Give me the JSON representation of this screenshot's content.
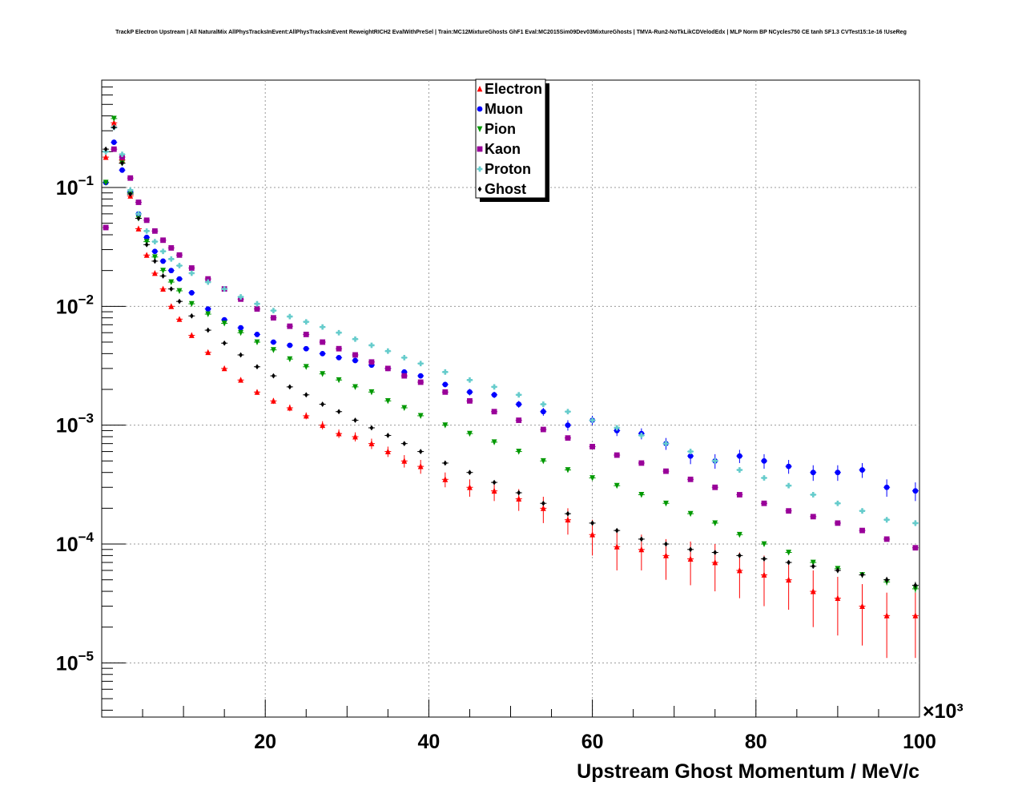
{
  "chart_data": {
    "type": "scatter",
    "title": "TrackP Electron Upstream | All NaturalMix AllPhysTracksInEvent:AllPhysTracksInEvent ReweightRICH2 EvalWithPreSel | Train:MC12MixtureGhosts GhF1 Eval:MC2015Sim09Dev03MixtureGhosts | TMVA-Run2-NoTkLikCDVelodEdx | MLP Norm BP NCycles750 CE tanh SF1.3 CVTest15:1e-16 !UseReg",
    "xlabel": "Upstream Ghost Momentum / MeV/c",
    "x_multiplier": "×10³",
    "xlim": [
      0,
      100
    ],
    "ylim": [
      3.5e-06,
      0.8
    ],
    "yscale": "log",
    "grid": true,
    "legend_position": "top-center",
    "x_ticks": [
      {
        "value": 20,
        "label": "20"
      },
      {
        "value": 40,
        "label": "40"
      },
      {
        "value": 60,
        "label": "60"
      },
      {
        "value": 80,
        "label": "80"
      },
      {
        "value": 100,
        "label": "100"
      }
    ],
    "y_ticks": [
      {
        "value": 0.1,
        "base": "10",
        "exp": "−1"
      },
      {
        "value": 0.01,
        "base": "10",
        "exp": "−2"
      },
      {
        "value": 0.001,
        "base": "10",
        "exp": "−3"
      },
      {
        "value": 0.0001,
        "base": "10",
        "exp": "−4"
      },
      {
        "value": 1e-05,
        "base": "10",
        "exp": "−5"
      }
    ],
    "series": [
      {
        "name": "Electron",
        "color": "#ff0000",
        "marker": "triangle-up",
        "x": [
          0.5,
          1.5,
          2.5,
          3.5,
          4.5,
          5.5,
          6.5,
          7.5,
          8.5,
          9.5,
          11,
          13,
          15,
          17,
          19,
          21,
          23,
          25,
          27,
          29,
          31,
          33,
          35,
          37,
          39,
          42,
          45,
          48,
          51,
          54,
          57,
          60,
          63,
          66,
          69,
          72,
          75,
          78,
          81,
          84,
          87,
          90,
          93,
          96,
          99.5
        ],
        "values": [
          0.18,
          0.35,
          0.17,
          0.085,
          0.045,
          0.027,
          0.019,
          0.014,
          0.01,
          0.0078,
          0.0057,
          0.0041,
          0.003,
          0.0024,
          0.0019,
          0.0016,
          0.0014,
          0.0012,
          0.001,
          0.00085,
          0.0008,
          0.0007,
          0.0006,
          0.0005,
          0.00045,
          0.00035,
          0.0003,
          0.00028,
          0.00024,
          0.0002,
          0.00016,
          0.00012,
          9.5e-05,
          9e-05,
          8e-05,
          7.5e-05,
          7e-05,
          6e-05,
          5.5e-05,
          5e-05,
          4e-05,
          3.5e-05,
          3e-05,
          2.5e-05,
          2.5e-05
        ],
        "err": [
          0.005,
          0.008,
          0.005,
          0.003,
          0.0015,
          0.001,
          0.0007,
          0.0005,
          0.0004,
          0.0003,
          0.0002,
          0.00015,
          0.00012,
          0.0001,
          0.0001,
          9e-05,
          9e-05,
          8e-05,
          8e-05,
          7e-05,
          7e-05,
          7e-05,
          6e-05,
          6e-05,
          6e-05,
          5e-05,
          5e-05,
          5e-05,
          5e-05,
          5e-05,
          4e-05,
          4e-05,
          3.5e-05,
          3e-05,
          3e-05,
          3e-05,
          3e-05,
          2.5e-05,
          2.5e-05,
          2.2e-05,
          2e-05,
          1.8e-05,
          1.6e-05,
          1.4e-05,
          1.4e-05
        ]
      },
      {
        "name": "Muon",
        "color": "#0000ff",
        "marker": "circle",
        "x": [
          0.5,
          1.5,
          2.5,
          3.5,
          4.5,
          5.5,
          6.5,
          7.5,
          8.5,
          9.5,
          11,
          13,
          15,
          17,
          19,
          21,
          23,
          25,
          27,
          29,
          31,
          33,
          35,
          37,
          39,
          42,
          45,
          48,
          51,
          54,
          57,
          60,
          63,
          66,
          69,
          72,
          75,
          78,
          81,
          84,
          87,
          90,
          93,
          96,
          99.5
        ],
        "values": [
          0.11,
          0.24,
          0.14,
          0.092,
          0.06,
          0.038,
          0.029,
          0.024,
          0.02,
          0.017,
          0.013,
          0.0095,
          0.0077,
          0.0066,
          0.0058,
          0.005,
          0.0047,
          0.0044,
          0.004,
          0.0037,
          0.0035,
          0.0032,
          0.003,
          0.0028,
          0.0026,
          0.0022,
          0.0019,
          0.0018,
          0.0015,
          0.0013,
          0.001,
          0.0011,
          0.0009,
          0.00085,
          0.0007,
          0.00055,
          0.0005,
          0.00055,
          0.0005,
          0.00045,
          0.0004,
          0.0004,
          0.00042,
          0.0003,
          0.00028
        ],
        "err": [
          0.004,
          0.006,
          0.004,
          0.003,
          0.002,
          0.0012,
          0.0009,
          0.0007,
          0.0006,
          0.0005,
          0.0004,
          0.0003,
          0.00025,
          0.0002,
          0.0002,
          0.00018,
          0.00017,
          0.00016,
          0.00015,
          0.00015,
          0.00015,
          0.00014,
          0.00014,
          0.00013,
          0.00013,
          0.00012,
          0.00012,
          0.00011,
          0.0001,
          0.0001,
          0.0001,
          0.0001,
          9e-05,
          9e-05,
          8e-05,
          8e-05,
          7e-05,
          7e-05,
          7e-05,
          6e-05,
          6e-05,
          6e-05,
          6e-05,
          5e-05,
          5e-05
        ]
      },
      {
        "name": "Pion",
        "color": "#009900",
        "marker": "triangle-down",
        "x": [
          0.5,
          1.5,
          2.5,
          3.5,
          4.5,
          5.5,
          6.5,
          7.5,
          8.5,
          9.5,
          11,
          13,
          15,
          17,
          19,
          21,
          23,
          25,
          27,
          29,
          31,
          33,
          35,
          37,
          39,
          42,
          45,
          48,
          51,
          54,
          57,
          60,
          63,
          66,
          69,
          72,
          75,
          78,
          81,
          84,
          87,
          90,
          93,
          96,
          99.5
        ],
        "values": [
          0.11,
          0.38,
          0.16,
          0.09,
          0.055,
          0.035,
          0.026,
          0.02,
          0.016,
          0.0135,
          0.0105,
          0.0086,
          0.0072,
          0.006,
          0.005,
          0.0043,
          0.0036,
          0.0031,
          0.0027,
          0.0024,
          0.0021,
          0.0019,
          0.0016,
          0.0014,
          0.0012,
          0.001,
          0.00085,
          0.00072,
          0.0006,
          0.0005,
          0.00042,
          0.00036,
          0.00031,
          0.00026,
          0.00022,
          0.00018,
          0.00015,
          0.00012,
          0.0001,
          8.5e-05,
          7e-05,
          6.2e-05,
          5.5e-05,
          4.8e-05,
          4.2e-05
        ],
        "err": [
          0.003,
          0.008,
          0.004,
          0.002,
          0.0012,
          0.0007,
          0.0005,
          0.0004,
          0.0003,
          0.00025,
          0.0002,
          0.00015,
          0.00012,
          0.0001,
          8e-05,
          6e-05,
          5e-05,
          4e-05,
          3e-05,
          3e-05,
          2.5e-05,
          2e-05,
          2e-05,
          1.5e-05,
          1.5e-05,
          1.2e-05,
          1e-05,
          1e-05,
          8e-06,
          7e-06,
          6e-06,
          5e-06,
          5e-06,
          4e-06,
          4e-06,
          3e-06,
          3e-06,
          3e-06,
          3e-06,
          3e-06,
          3e-06,
          3e-06,
          3e-06,
          3e-06,
          3e-06
        ]
      },
      {
        "name": "Kaon",
        "color": "#990099",
        "marker": "square",
        "x": [
          0.5,
          1.5,
          2.5,
          3.5,
          4.5,
          5.5,
          6.5,
          7.5,
          8.5,
          9.5,
          11,
          13,
          15,
          17,
          19,
          21,
          23,
          25,
          27,
          29,
          31,
          33,
          35,
          37,
          39,
          42,
          45,
          48,
          51,
          54,
          57,
          60,
          63,
          66,
          69,
          72,
          75,
          78,
          81,
          84,
          87,
          90,
          93,
          96,
          99.5
        ],
        "values": [
          0.046,
          0.21,
          0.18,
          0.12,
          0.075,
          0.053,
          0.043,
          0.036,
          0.031,
          0.027,
          0.021,
          0.017,
          0.014,
          0.0115,
          0.0095,
          0.008,
          0.0068,
          0.0058,
          0.005,
          0.0044,
          0.0039,
          0.0034,
          0.003,
          0.0026,
          0.0023,
          0.0019,
          0.0016,
          0.0013,
          0.0011,
          0.00092,
          0.00078,
          0.00066,
          0.00056,
          0.00048,
          0.00041,
          0.00035,
          0.0003,
          0.00026,
          0.00022,
          0.00019,
          0.00017,
          0.00015,
          0.00013,
          0.00011,
          9.3e-05
        ],
        "err": [
          0.0015,
          0.005,
          0.004,
          0.003,
          0.002,
          0.0012,
          0.001,
          0.0008,
          0.0007,
          0.0006,
          0.0004,
          0.0003,
          0.00025,
          0.0002,
          0.00016,
          0.00013,
          0.00011,
          0.0001,
          8e-05,
          7e-05,
          6e-05,
          5e-05,
          5e-05,
          4e-05,
          4e-05,
          3e-05,
          3e-05,
          2e-05,
          2e-05,
          1.8e-05,
          1.6e-05,
          1.4e-05,
          1.2e-05,
          1e-05,
          1e-05,
          9e-06,
          8e-06,
          7e-06,
          6e-06,
          6e-06,
          5e-06,
          5e-06,
          5e-06,
          4e-06,
          4e-06
        ]
      },
      {
        "name": "Proton",
        "color": "#66cccc",
        "marker": "cross",
        "x": [
          0.5,
          1.5,
          2.5,
          3.5,
          4.5,
          5.5,
          6.5,
          7.5,
          8.5,
          9.5,
          11,
          13,
          15,
          17,
          19,
          21,
          23,
          25,
          27,
          29,
          31,
          33,
          35,
          37,
          39,
          42,
          45,
          48,
          51,
          54,
          57,
          60,
          63,
          66,
          69,
          72,
          75,
          78,
          81,
          84,
          87,
          90,
          93,
          96,
          99.5
        ],
        "values": [
          0.2,
          0.32,
          0.19,
          0.095,
          0.06,
          0.043,
          0.035,
          0.029,
          0.025,
          0.022,
          0.019,
          0.016,
          0.014,
          0.012,
          0.0105,
          0.0092,
          0.0082,
          0.0074,
          0.0067,
          0.006,
          0.0053,
          0.0047,
          0.0042,
          0.0037,
          0.0033,
          0.0028,
          0.0024,
          0.0021,
          0.0018,
          0.0015,
          0.0013,
          0.0011,
          0.00095,
          0.00082,
          0.0007,
          0.0006,
          0.0005,
          0.00042,
          0.00036,
          0.00031,
          0.00026,
          0.00022,
          0.00019,
          0.00016,
          0.00015
        ],
        "err": [
          0.004,
          0.006,
          0.004,
          0.002,
          0.0015,
          0.001,
          0.0008,
          0.0006,
          0.0005,
          0.0004,
          0.0003,
          0.00025,
          0.0002,
          0.00018,
          0.00015,
          0.00013,
          0.00012,
          0.0001,
          9e-05,
          8e-05,
          7e-05,
          7e-05,
          6e-05,
          5e-05,
          5e-05,
          4e-05,
          4e-05,
          3e-05,
          3e-05,
          3e-05,
          2.5e-05,
          2.2e-05,
          2e-05,
          1.8e-05,
          1.6e-05,
          1.5e-05,
          1.4e-05,
          1.3e-05,
          1.2e-05,
          1.1e-05,
          1e-05,
          1e-05,
          1e-05,
          9e-06,
          9e-06
        ]
      },
      {
        "name": "Ghost",
        "color": "#000000",
        "marker": "diamond",
        "x": [
          0.5,
          1.5,
          2.5,
          3.5,
          4.5,
          5.5,
          6.5,
          7.5,
          8.5,
          9.5,
          11,
          13,
          15,
          17,
          19,
          21,
          23,
          25,
          27,
          29,
          31,
          33,
          35,
          37,
          39,
          42,
          45,
          48,
          51,
          54,
          57,
          60,
          63,
          66,
          69,
          72,
          75,
          78,
          81,
          84,
          87,
          90,
          93,
          96,
          99.5
        ],
        "values": [
          0.21,
          0.32,
          0.16,
          0.088,
          0.055,
          0.033,
          0.024,
          0.018,
          0.014,
          0.011,
          0.0083,
          0.0063,
          0.0049,
          0.0039,
          0.0031,
          0.0026,
          0.0021,
          0.0018,
          0.0015,
          0.0013,
          0.0011,
          0.00095,
          0.00082,
          0.0007,
          0.0006,
          0.00048,
          0.0004,
          0.00033,
          0.00027,
          0.00022,
          0.00018,
          0.00015,
          0.00013,
          0.00011,
          0.0001,
          9e-05,
          8.5e-05,
          8e-05,
          7.5e-05,
          7e-05,
          6.5e-05,
          6e-05,
          5.5e-05,
          5e-05,
          4.5e-05
        ],
        "err": [
          0.004,
          0.005,
          0.003,
          0.002,
          0.0012,
          0.0007,
          0.0005,
          0.0004,
          0.0003,
          0.0002,
          0.00015,
          0.0001,
          8e-05,
          6e-05,
          5e-05,
          4e-05,
          3e-05,
          2.5e-05,
          2e-05,
          1.8e-05,
          1.5e-05,
          1.2e-05,
          1e-05,
          9e-06,
          8e-06,
          6e-06,
          5e-06,
          5e-06,
          4e-06,
          4e-06,
          3e-06,
          3e-06,
          3e-06,
          3e-06,
          3e-06,
          3e-06,
          3e-06,
          3e-06,
          3e-06,
          3e-06,
          3e-06,
          3e-06,
          3e-06,
          3e-06,
          3e-06
        ]
      }
    ]
  }
}
